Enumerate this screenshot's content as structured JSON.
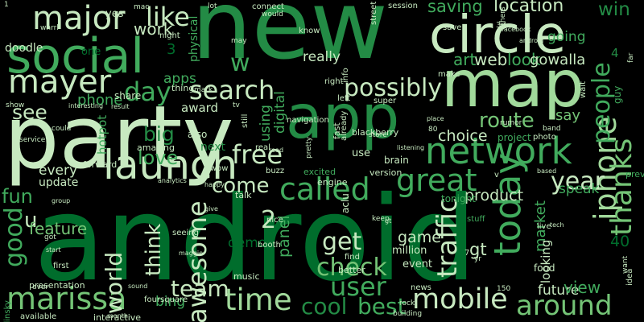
{
  "colors": {
    "background": "#000000",
    "c1": "#c7e9c0",
    "c2": "#a1d99b",
    "c3": "#74c476",
    "c4": "#41ab5d",
    "c5": "#238b45",
    "c6": "#006d2c",
    "c7": "#00441b"
  },
  "words": [
    {
      "text": "android",
      "color": "c6"
    },
    {
      "text": "new",
      "color": "c5"
    },
    {
      "text": "party",
      "color": "c1"
    },
    {
      "text": "map",
      "color": "c2"
    },
    {
      "text": "app",
      "color": "c5"
    },
    {
      "text": "social",
      "color": "c4"
    },
    {
      "text": "circle",
      "color": "c1"
    },
    {
      "text": "launch",
      "color": "c1"
    },
    {
      "text": "network",
      "color": "c4"
    },
    {
      "text": "major",
      "color": "c1"
    },
    {
      "text": "mayer",
      "color": "c1"
    },
    {
      "text": "mobile",
      "color": "c1"
    },
    {
      "text": "today",
      "color": "c4"
    },
    {
      "text": "time",
      "color": "c2"
    },
    {
      "text": "great",
      "color": "c4"
    },
    {
      "text": "called",
      "color": "c4"
    },
    {
      "text": "marissa",
      "color": "c3"
    },
    {
      "text": "iphone",
      "color": "c2"
    },
    {
      "text": "around",
      "color": "c3"
    },
    {
      "text": "search",
      "color": "c1"
    },
    {
      "text": "user",
      "color": "c4"
    },
    {
      "text": "traffic",
      "color": "c1"
    },
    {
      "text": "get",
      "color": "c1"
    },
    {
      "text": "possibly",
      "color": "c1"
    },
    {
      "text": "check",
      "color": "c3"
    },
    {
      "text": "awesome",
      "color": "c1"
    },
    {
      "text": "thanks",
      "color": "c3"
    },
    {
      "text": "day",
      "color": "c4"
    },
    {
      "text": "free",
      "color": "c1"
    },
    {
      "text": "people",
      "color": "c4"
    },
    {
      "text": "like",
      "color": "c1"
    },
    {
      "text": "good",
      "color": "c4"
    },
    {
      "text": "world",
      "color": "c1"
    },
    {
      "text": "best",
      "color": "c4"
    },
    {
      "text": "cool",
      "color": "c5"
    },
    {
      "text": "year",
      "color": "c1"
    },
    {
      "text": "team",
      "color": "c1"
    },
    {
      "text": "think",
      "color": "c1"
    },
    {
      "text": "see",
      "color": "c1"
    },
    {
      "text": "big",
      "color": "c5"
    },
    {
      "text": "love",
      "color": "c4"
    },
    {
      "text": "route",
      "color": "c3"
    },
    {
      "text": "come",
      "color": "c1"
    },
    {
      "text": "fun",
      "color": "c4"
    },
    {
      "text": "2",
      "color": "c1"
    },
    {
      "text": "u",
      "color": "c1"
    },
    {
      "text": "w",
      "color": "c4"
    },
    {
      "text": "saving",
      "color": "c4"
    },
    {
      "text": "location",
      "color": "c1"
    },
    {
      "text": "win",
      "color": "c5"
    },
    {
      "text": "work",
      "color": "c1"
    },
    {
      "text": "feature",
      "color": "c3"
    },
    {
      "text": "market",
      "color": "c4"
    },
    {
      "text": "speak",
      "color": "c4"
    },
    {
      "text": "product",
      "color": "c1"
    },
    {
      "text": "game",
      "color": "c1"
    },
    {
      "text": "gt",
      "color": "c1"
    },
    {
      "text": "look",
      "color": "c4"
    },
    {
      "text": "web",
      "color": "c1"
    },
    {
      "text": "art",
      "color": "c4"
    },
    {
      "text": "apps",
      "color": "c4"
    },
    {
      "text": "phone",
      "color": "c4"
    },
    {
      "text": "really",
      "color": "c1"
    },
    {
      "text": "say",
      "color": "c3"
    },
    {
      "text": "choice",
      "color": "c1"
    },
    {
      "text": "going",
      "color": "c4"
    },
    {
      "text": "gowalla",
      "color": "c1"
    },
    {
      "text": "bing",
      "color": "c4"
    },
    {
      "text": "panel",
      "color": "c4"
    },
    {
      "text": "demo",
      "color": "c6"
    },
    {
      "text": "looking",
      "color": "c1"
    },
    {
      "text": "future",
      "color": "c1"
    },
    {
      "text": "view",
      "color": "c4"
    },
    {
      "text": "every",
      "color": "c1"
    },
    {
      "text": "update",
      "color": "c1"
    },
    {
      "text": "digital",
      "color": "c4"
    },
    {
      "text": "using",
      "color": "c4"
    },
    {
      "text": "award",
      "color": "c1"
    },
    {
      "text": "hotpot",
      "color": "c4"
    },
    {
      "text": "doodle",
      "color": "c1"
    },
    {
      "text": "yes",
      "color": "c1"
    },
    {
      "text": "physical",
      "color": "c4"
    },
    {
      "text": "3",
      "color": "c6"
    },
    {
      "text": "3d",
      "color": "c1"
    },
    {
      "text": "40",
      "color": "c6"
    },
    {
      "text": "4",
      "color": "c5"
    },
    {
      "text": "one",
      "color": "c6"
    },
    {
      "text": "share",
      "color": "c1"
    },
    {
      "text": "right",
      "color": "c1"
    },
    {
      "text": "thing",
      "color": "c1"
    },
    {
      "text": "next",
      "color": "c5"
    },
    {
      "text": "also",
      "color": "c1"
    },
    {
      "text": "forward",
      "color": "c1"
    },
    {
      "text": "amazing",
      "color": "c1"
    },
    {
      "text": "project",
      "color": "c4"
    },
    {
      "text": "use",
      "color": "c1"
    },
    {
      "text": "brain",
      "color": "c1"
    },
    {
      "text": "version",
      "color": "c1"
    },
    {
      "text": "excited",
      "color": "c4"
    },
    {
      "text": "engine",
      "color": "c1"
    },
    {
      "text": "better",
      "color": "c1"
    },
    {
      "text": "aclu",
      "color": "c1"
    },
    {
      "text": "tonight",
      "color": "c4"
    },
    {
      "text": "million",
      "color": "c1"
    },
    {
      "text": "stuff",
      "color": "c4"
    },
    {
      "text": "event",
      "color": "c1"
    },
    {
      "text": "find",
      "color": "c1"
    },
    {
      "text": "music",
      "color": "c1"
    },
    {
      "text": "foursquare",
      "color": "c1"
    },
    {
      "text": "news",
      "color": "c1"
    },
    {
      "text": "available",
      "color": "c1"
    },
    {
      "text": "interactive",
      "color": "c1"
    },
    {
      "text": "belinsky",
      "color": "c4"
    },
    {
      "text": "first",
      "color": "c1"
    },
    {
      "text": "talk",
      "color": "c1"
    },
    {
      "text": "real",
      "color": "c1"
    },
    {
      "text": "wow",
      "color": "c1"
    },
    {
      "text": "buzz",
      "color": "c1"
    },
    {
      "text": "read",
      "color": "c1"
    },
    {
      "text": "connect",
      "color": "c1"
    },
    {
      "text": "would",
      "color": "c1"
    },
    {
      "text": "know",
      "color": "c1"
    },
    {
      "text": "may",
      "color": "c1"
    },
    {
      "text": "mark",
      "color": "c1"
    },
    {
      "text": "night",
      "color": "c1"
    },
    {
      "text": "street",
      "color": "c1"
    },
    {
      "text": "session",
      "color": "c1"
    },
    {
      "text": "make",
      "color": "c1"
    },
    {
      "text": "save",
      "color": "c1"
    },
    {
      "text": "android",
      "color": "c1"
    },
    {
      "text": "tv",
      "color": "c1"
    },
    {
      "text": "super",
      "color": "c1"
    },
    {
      "text": "still",
      "color": "c1"
    },
    {
      "text": "navigation",
      "color": "c1"
    },
    {
      "text": "rumor",
      "color": "c1"
    },
    {
      "text": "band",
      "color": "c1"
    },
    {
      "text": "guy",
      "color": "c4"
    },
    {
      "text": "based",
      "color": "c1"
    },
    {
      "text": "preview",
      "color": "c4"
    },
    {
      "text": "live",
      "color": "c1"
    },
    {
      "text": "food",
      "color": "c1"
    },
    {
      "text": "photo",
      "color": "c1"
    },
    {
      "text": "wait",
      "color": "c1"
    },
    {
      "text": "fast",
      "color": "c1"
    },
    {
      "text": "blackberry",
      "color": "c1"
    },
    {
      "text": "nice",
      "color": "c1"
    },
    {
      "text": "booth",
      "color": "c1"
    },
    {
      "text": "give",
      "color": "c1"
    },
    {
      "text": "seeing",
      "color": "c1"
    },
    {
      "text": "got",
      "color": "c1"
    },
    {
      "text": "start",
      "color": "c1"
    },
    {
      "text": "sound",
      "color": "c1"
    },
    {
      "text": "ever",
      "color": "c1"
    },
    {
      "text": "month",
      "color": "c1"
    },
    {
      "text": "maggie",
      "color": "c1"
    },
    {
      "text": "presentation",
      "color": "c1"
    },
    {
      "text": "7",
      "color": "c1"
    },
    {
      "text": "80",
      "color": "c1"
    },
    {
      "text": "1",
      "color": "c1"
    },
    {
      "text": "show",
      "color": "c1"
    },
    {
      "text": "interesting",
      "color": "c1"
    },
    {
      "text": "result",
      "color": "c1"
    },
    {
      "text": "service",
      "color": "c1"
    },
    {
      "text": "could",
      "color": "c1"
    },
    {
      "text": "group",
      "color": "c1"
    },
    {
      "text": "analytics",
      "color": "c1"
    },
    {
      "text": "keep",
      "color": "c1"
    },
    {
      "text": "gt",
      "color": "c1"
    },
    {
      "text": "yr",
      "color": "c1"
    },
    {
      "text": "150",
      "color": "c1"
    },
    {
      "text": "rock",
      "color": "c1"
    },
    {
      "text": "idea",
      "color": "c1"
    },
    {
      "text": "want",
      "color": "c1"
    },
    {
      "text": "building",
      "color": "c1"
    },
    {
      "text": "others",
      "color": "c1"
    },
    {
      "text": "place",
      "color": "c1"
    },
    {
      "text": "info",
      "color": "c1"
    },
    {
      "text": "pretty",
      "color": "c1"
    },
    {
      "text": "left",
      "color": "c1"
    },
    {
      "text": "v",
      "color": "c1"
    },
    {
      "text": "already",
      "color": "c1"
    },
    {
      "text": "far",
      "color": "c1"
    },
    {
      "text": "listening",
      "color": "c1"
    },
    {
      "text": "store",
      "color": "c1"
    },
    {
      "text": "tech",
      "color": "c1"
    },
    {
      "text": "facebook",
      "color": "c1"
    },
    {
      "text": "mac",
      "color": "c1"
    },
    {
      "text": "lot",
      "color": "c1"
    },
    {
      "text": "whrrl",
      "color": "c1"
    },
    {
      "text": "happy",
      "color": "c1"
    },
    {
      "text": "saw",
      "color": "c1"
    }
  ]
}
